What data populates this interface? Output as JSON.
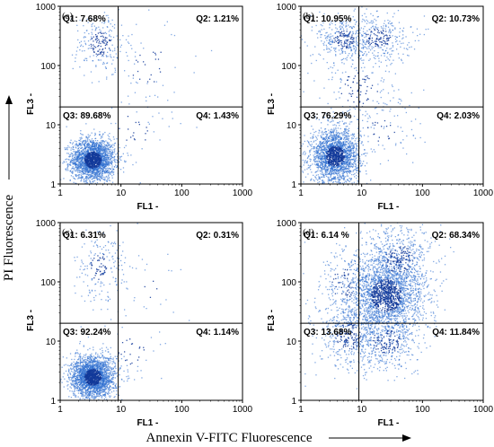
{
  "figure": {
    "y_title": "PI Fluorescence",
    "x_title": "Annexin V-FITC Fluorescence"
  },
  "chart_data": [
    {
      "type": "scatter",
      "panel_label": "(a)",
      "xlabel": "FL1 -",
      "ylabel": "FL3 -",
      "xscale": "log",
      "yscale": "log",
      "xlim": [
        1,
        1000
      ],
      "ylim": [
        1,
        1000
      ],
      "x_ticks": [
        "1",
        "10",
        "100",
        "1000"
      ],
      "y_ticks": [
        "1",
        "10",
        "100",
        "1000"
      ],
      "gate": {
        "x": 9,
        "y": 20
      },
      "quadrants": {
        "Q1": "Q1: 7.68%",
        "Q2": "Q2: 1.21%",
        "Q3": "Q3: 89.68%",
        "Q4": "Q4: 1.43%"
      },
      "populations": [
        {
          "cx": 3.4,
          "cy": 2.6,
          "sx": 0.18,
          "sy": 0.18,
          "n": 2200
        },
        {
          "cx": 4.5,
          "cy": 240,
          "sx": 0.22,
          "sy": 0.26,
          "n": 240
        },
        {
          "cx": 15,
          "cy": 8,
          "sx": 0.35,
          "sy": 0.35,
          "n": 60
        },
        {
          "cx": 30,
          "cy": 100,
          "sx": 0.45,
          "sy": 0.35,
          "n": 50
        }
      ]
    },
    {
      "type": "scatter",
      "panel_label": "(b)",
      "xlabel": "FL1 -",
      "ylabel": "FL3 -",
      "xscale": "log",
      "yscale": "log",
      "xlim": [
        1,
        1000
      ],
      "ylim": [
        1,
        1000
      ],
      "x_ticks": [
        "1",
        "10",
        "100",
        "1000"
      ],
      "y_ticks": [
        "1",
        "10",
        "100",
        "1000"
      ],
      "gate": {
        "x": 9,
        "y": 20
      },
      "quadrants": {
        "Q1": "Q1: 10.95%",
        "Q2": "Q2: 10.73%",
        "Q3": "Q3: 76.29%",
        "Q4": "Q4: 2.03%"
      },
      "populations": [
        {
          "cx": 3.6,
          "cy": 3.0,
          "sx": 0.2,
          "sy": 0.22,
          "n": 2100
        },
        {
          "cx": 5,
          "cy": 280,
          "sx": 0.22,
          "sy": 0.2,
          "n": 320
        },
        {
          "cx": 18,
          "cy": 300,
          "sx": 0.28,
          "sy": 0.2,
          "n": 320
        },
        {
          "cx": 9,
          "cy": 40,
          "sx": 0.4,
          "sy": 0.4,
          "n": 200
        },
        {
          "cx": 20,
          "cy": 8,
          "sx": 0.35,
          "sy": 0.3,
          "n": 70
        }
      ]
    },
    {
      "type": "scatter",
      "panel_label": "(c)",
      "xlabel": "FL1 -",
      "ylabel": "FL3 -",
      "xscale": "log",
      "yscale": "log",
      "xlim": [
        1,
        1000
      ],
      "ylim": [
        1,
        1000
      ],
      "x_ticks": [
        "1",
        "10",
        "100",
        "1000"
      ],
      "y_ticks": [
        "1",
        "10",
        "100",
        "1000"
      ],
      "gate": {
        "x": 9,
        "y": 20
      },
      "quadrants": {
        "Q1": "Q1: 6.31%",
        "Q2": "Q2: 0.31%",
        "Q3": "Q3: 92.24%",
        "Q4": "Q4: 1.14%"
      },
      "populations": [
        {
          "cx": 3.4,
          "cy": 2.5,
          "sx": 0.18,
          "sy": 0.18,
          "n": 2300
        },
        {
          "cx": 4.5,
          "cy": 180,
          "sx": 0.22,
          "sy": 0.3,
          "n": 200
        },
        {
          "cx": 14,
          "cy": 7,
          "sx": 0.3,
          "sy": 0.3,
          "n": 55
        },
        {
          "cx": 25,
          "cy": 80,
          "sx": 0.4,
          "sy": 0.3,
          "n": 20
        }
      ]
    },
    {
      "type": "scatter",
      "panel_label": "(d)",
      "xlabel": "FL1 -",
      "ylabel": "FL3 -",
      "xscale": "log",
      "yscale": "log",
      "xlim": [
        1,
        1000
      ],
      "ylim": [
        1,
        1000
      ],
      "x_ticks": [
        "1",
        "10",
        "100",
        "1000"
      ],
      "y_ticks": [
        "1",
        "10",
        "100",
        "1000"
      ],
      "gate": {
        "x": 9,
        "y": 20
      },
      "quadrants": {
        "Q1": "Q1: 6.14 %",
        "Q2": "Q2: 68.34%",
        "Q3": "Q3: 13.68%",
        "Q4": "Q4: 11.84%"
      },
      "populations": [
        {
          "cx": 25,
          "cy": 60,
          "sx": 0.32,
          "sy": 0.36,
          "n": 2300
        },
        {
          "cx": 40,
          "cy": 250,
          "sx": 0.3,
          "sy": 0.3,
          "n": 500
        },
        {
          "cx": 6,
          "cy": 12,
          "sx": 0.28,
          "sy": 0.3,
          "n": 400
        },
        {
          "cx": 25,
          "cy": 10,
          "sx": 0.3,
          "sy": 0.25,
          "n": 350
        },
        {
          "cx": 5,
          "cy": 90,
          "sx": 0.25,
          "sy": 0.35,
          "n": 150
        }
      ]
    }
  ],
  "colors": {
    "dot": "#2f6fd0",
    "dot_dense": "#123a9a",
    "axis": "#000000",
    "gate": "#000000"
  }
}
